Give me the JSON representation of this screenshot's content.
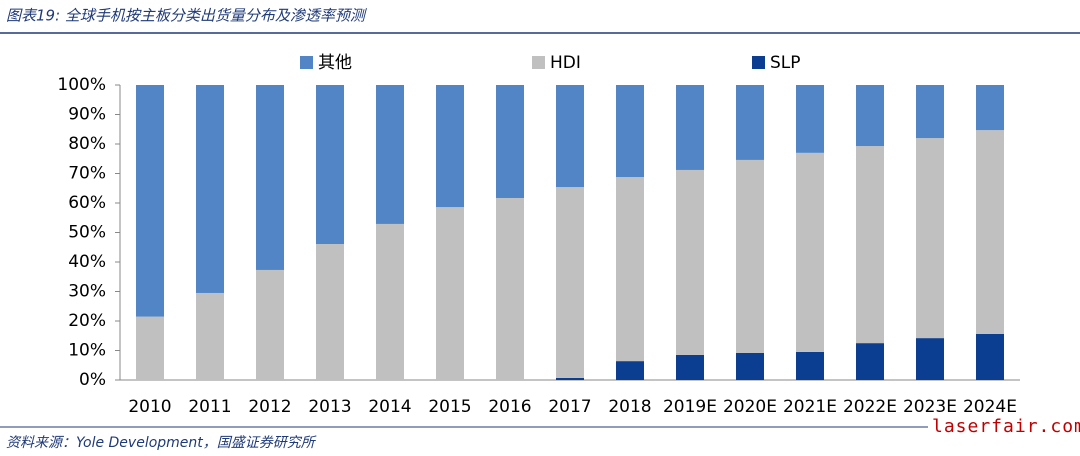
{
  "chart_data": {
    "type": "stacked-bar",
    "title": "图表19:  全球手机按主板分类出货量分布及渗透率预测",
    "source": "资料来源：Yole Development，国盛证券研究所",
    "watermark": "laserfair.com",
    "categories": [
      "2010",
      "2011",
      "2012",
      "2013",
      "2014",
      "2015",
      "2016",
      "2017",
      "2018",
      "2019E",
      "2020E",
      "2021E",
      "2022E",
      "2023E",
      "2024E"
    ],
    "series": [
      {
        "name": "SLP",
        "color": "#0b3d91",
        "values": [
          0,
          0,
          0,
          0,
          0,
          0,
          0,
          0.7,
          6.4,
          8.5,
          9.2,
          9.5,
          12.5,
          14.2,
          15.6
        ]
      },
      {
        "name": "HDI",
        "color": "#c0c0c0",
        "values": [
          21.5,
          29.5,
          37.3,
          46.1,
          52.9,
          58.6,
          61.7,
          64.7,
          62.4,
          62.7,
          65.4,
          67.5,
          66.8,
          67.8,
          69.1
        ]
      },
      {
        "name": "其他",
        "color": "#5285c6",
        "values": [
          78.5,
          70.5,
          62.7,
          53.9,
          47.1,
          41.4,
          38.3,
          34.6,
          31.2,
          28.8,
          25.4,
          23.0,
          20.7,
          18.0,
          15.3
        ]
      }
    ],
    "legend_order": [
      2,
      1,
      0
    ],
    "ylim": [
      0,
      100
    ],
    "yticks": [
      {
        "value": 0,
        "label": "0%"
      },
      {
        "value": 10,
        "label": "10%"
      },
      {
        "value": 20,
        "label": "20%"
      },
      {
        "value": 30,
        "label": "30%"
      },
      {
        "value": 40,
        "label": "40%"
      },
      {
        "value": 50,
        "label": "50%"
      },
      {
        "value": 60,
        "label": "60%"
      },
      {
        "value": 70,
        "label": "70%"
      },
      {
        "value": 80,
        "label": "80%"
      },
      {
        "value": 90,
        "label": "90%"
      },
      {
        "value": 100,
        "label": "100%"
      }
    ]
  }
}
